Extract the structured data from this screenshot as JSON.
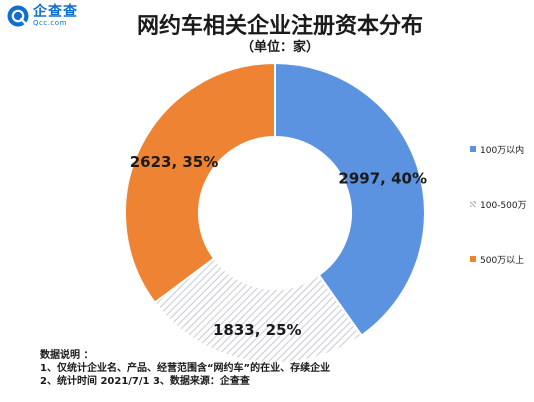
{
  "brand": {
    "name": "企查查",
    "sub": "Qcc.com"
  },
  "title": "网约车相关企业注册资本分布",
  "subtitle": "（单位：家）",
  "chart_data": {
    "type": "pie",
    "donut": true,
    "title": "网约车相关企业注册资本分布",
    "unit": "家",
    "categories": [
      "100万以内",
      "100-500万",
      "500万以上"
    ],
    "values": [
      2997,
      1833,
      2623
    ],
    "percents": [
      40,
      25,
      35
    ],
    "data_labels": [
      "2997, 40%",
      "1833, 25%",
      "2623, 35%"
    ],
    "colors": [
      "#5b93e0",
      "#e3e6ea",
      "#ee8433"
    ],
    "legend": "right",
    "start": "12 o'clock, clockwise"
  },
  "notes": {
    "heading": "数据说明 ：",
    "line1": "1、仅统计企业名、产品、经营范围含“网约车”的在业、存续企业",
    "line2": "2、统计时间  2021/7/1      3、数据来源：企查查"
  }
}
